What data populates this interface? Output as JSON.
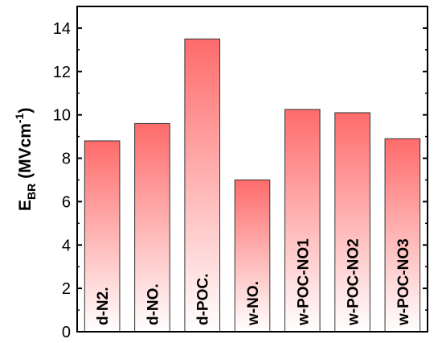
{
  "chart_data": {
    "type": "bar",
    "categories": [
      "d-N2.",
      "d-NO.",
      "d-POC.",
      "w-NO.",
      "w-POC-NO1",
      "w-POC-NO2",
      "w-POC-NO3"
    ],
    "values": [
      8.8,
      9.6,
      13.5,
      7.0,
      10.25,
      10.1,
      8.9
    ],
    "ylabel": {
      "main": "E",
      "sub": "BR",
      "mid": " (MVcm",
      "sup": "-1",
      "end": ")"
    },
    "yticks": [
      "0",
      "2",
      "4",
      "6",
      "8",
      "10",
      "12",
      "14"
    ],
    "ylim": [
      0,
      15
    ],
    "grid": false,
    "colors": {
      "bar_top": "#ff6b6b",
      "bar_bottom": "#ffffff",
      "axis": "#000000"
    }
  }
}
